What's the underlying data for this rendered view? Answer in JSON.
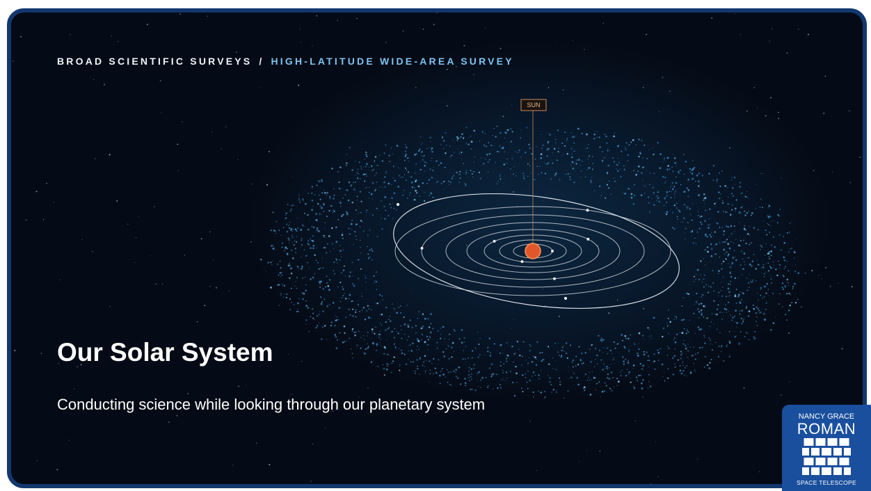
{
  "breadcrumb": {
    "section": "BROAD SCIENTIFIC SURVEYS",
    "separator": "/",
    "current": "HIGH-LATITUDE WIDE-AREA SURVEY"
  },
  "diagram": {
    "sun_label": "SUN"
  },
  "title": "Our Solar System",
  "subtitle": "Conducting science while looking through our planetary system",
  "logo": {
    "top": "NANCY GRACE",
    "name": "ROMAN",
    "bottom": "SPACE TELESCOPE"
  }
}
